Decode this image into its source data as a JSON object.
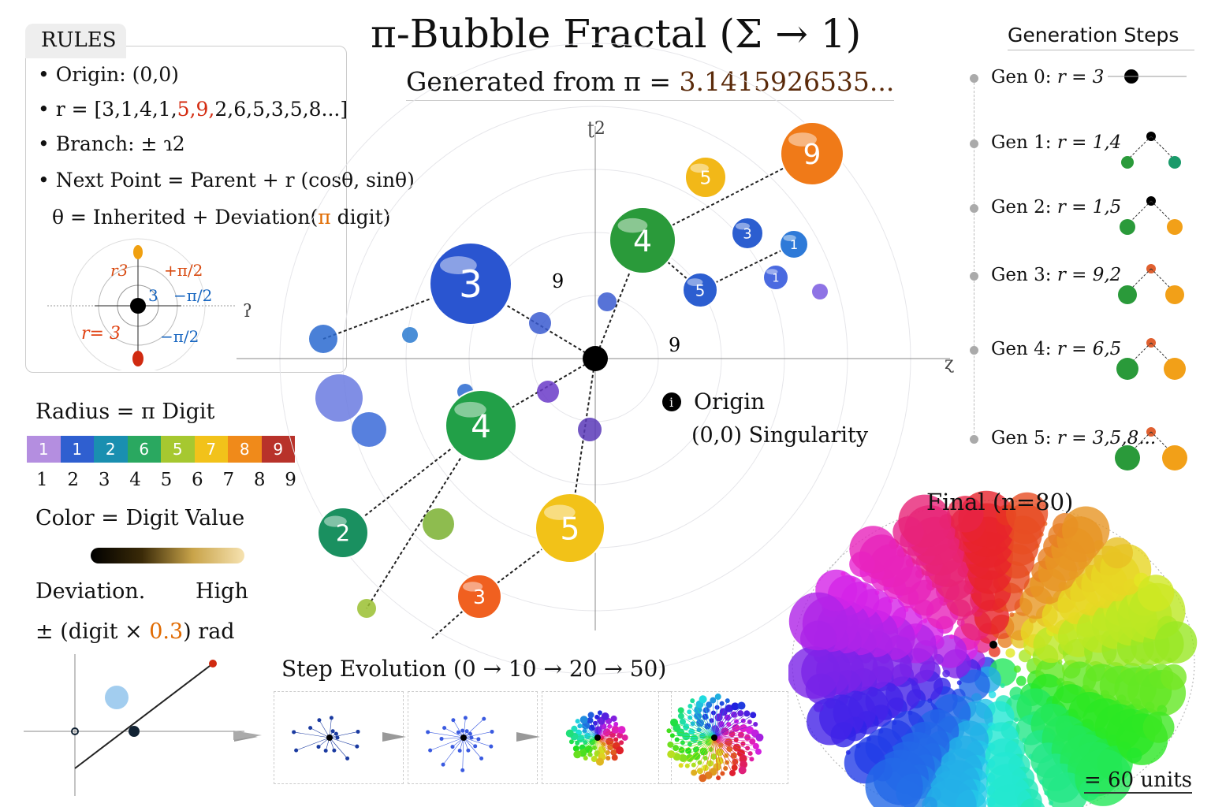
{
  "title": "π-Bubble Fractal (Σ → 1)",
  "subtitle": {
    "prefix": "Generated from π = ",
    "value": "3.1415926535..."
  },
  "rules": {
    "tab": "RULES",
    "origin": "• Origin: (0,0)",
    "r_prefix": "• r = [3,1,4,1,",
    "r_red1": "5,",
    "r_red2": "9,",
    "r_suffix": "2,6,5,3,5,8...]",
    "branch": "• Branch: ± ɿ2",
    "next_point": "• Next Point = Parent + r (cosθ, sinθ)",
    "theta_prefix": "θ = Inherited + Deviation(",
    "theta_pi": "π",
    "theta_suffix": " digit)",
    "diagram": {
      "r_top": "r3",
      "plus": "+π/2",
      "three": "3",
      "minus1": "−π/2",
      "r_eq": "r= 3",
      "minus2": "−π/2"
    }
  },
  "legend": {
    "radius_title": "Radius = π Digit",
    "bar": [
      {
        "d": "1",
        "c": "#b48ee0"
      },
      {
        "d": "1",
        "c": "#2f5fd0"
      },
      {
        "d": "2",
        "c": "#1a8fb0"
      },
      {
        "d": "6",
        "c": "#2aa860"
      },
      {
        "d": "5",
        "c": "#a6c830"
      },
      {
        "d": "7",
        "c": "#f2c21a"
      },
      {
        "d": "8",
        "c": "#f08a1a"
      },
      {
        "d": "9",
        "c": "#b8322a"
      }
    ],
    "ticks": [
      "1",
      "2",
      "3",
      "4",
      "5",
      "6",
      "7",
      "8",
      "9"
    ],
    "color_title": "Color = Digit Value",
    "deviation": "Deviation.",
    "high": "High",
    "formula_prefix": "± (digit × ",
    "formula_value": "0.3",
    "formula_suffix": ") rad"
  },
  "generation": {
    "title": "Generation Steps",
    "steps": [
      {
        "label": "Gen 0: ",
        "r": "r = 3"
      },
      {
        "label": "Gen 1: ",
        "r": "r = 1,4"
      },
      {
        "label": "Gen 2: ",
        "r": "r = 1,5"
      },
      {
        "label": "Gen 3: ",
        "r": "r = 9,2"
      },
      {
        "label": "Gen 4: ",
        "r": "r = 6,5"
      },
      {
        "label": "Gen 5: ",
        "r": "r = 3,5,8..."
      }
    ]
  },
  "main": {
    "axis_top": "ʈ2",
    "axis_right": "ɀ",
    "axis_left": "ʔ",
    "origin_label": "Origin",
    "origin_sub": "(0,0)  Singularity",
    "bubbles": [
      {
        "d": "3",
        "c": "#2a55d0"
      },
      {
        "d": "4",
        "c": "#2a9a3a"
      },
      {
        "d": "9",
        "c": "#f07a18"
      },
      {
        "d": "5",
        "c": "#f2b818"
      },
      {
        "d": "3",
        "c": "#2c5ed0"
      },
      {
        "d": "1",
        "c": "#2e7ad8"
      },
      {
        "d": "5",
        "c": "#2c5ed0"
      },
      {
        "d": "1",
        "c": "#4a6ae0"
      },
      {
        "d": "4",
        "c": "#22a048"
      },
      {
        "d": "2",
        "c": "#1a9060"
      },
      {
        "d": "5",
        "c": "#f2c218"
      },
      {
        "d": "3",
        "c": "#f06020"
      }
    ],
    "free_labels": [
      "9",
      "9"
    ]
  },
  "step_evolution": {
    "title": "Step Evolution (0 → 10 → 20 → 50)"
  },
  "final": {
    "label": "Final (n=80)",
    "scale": "= 60 units"
  }
}
